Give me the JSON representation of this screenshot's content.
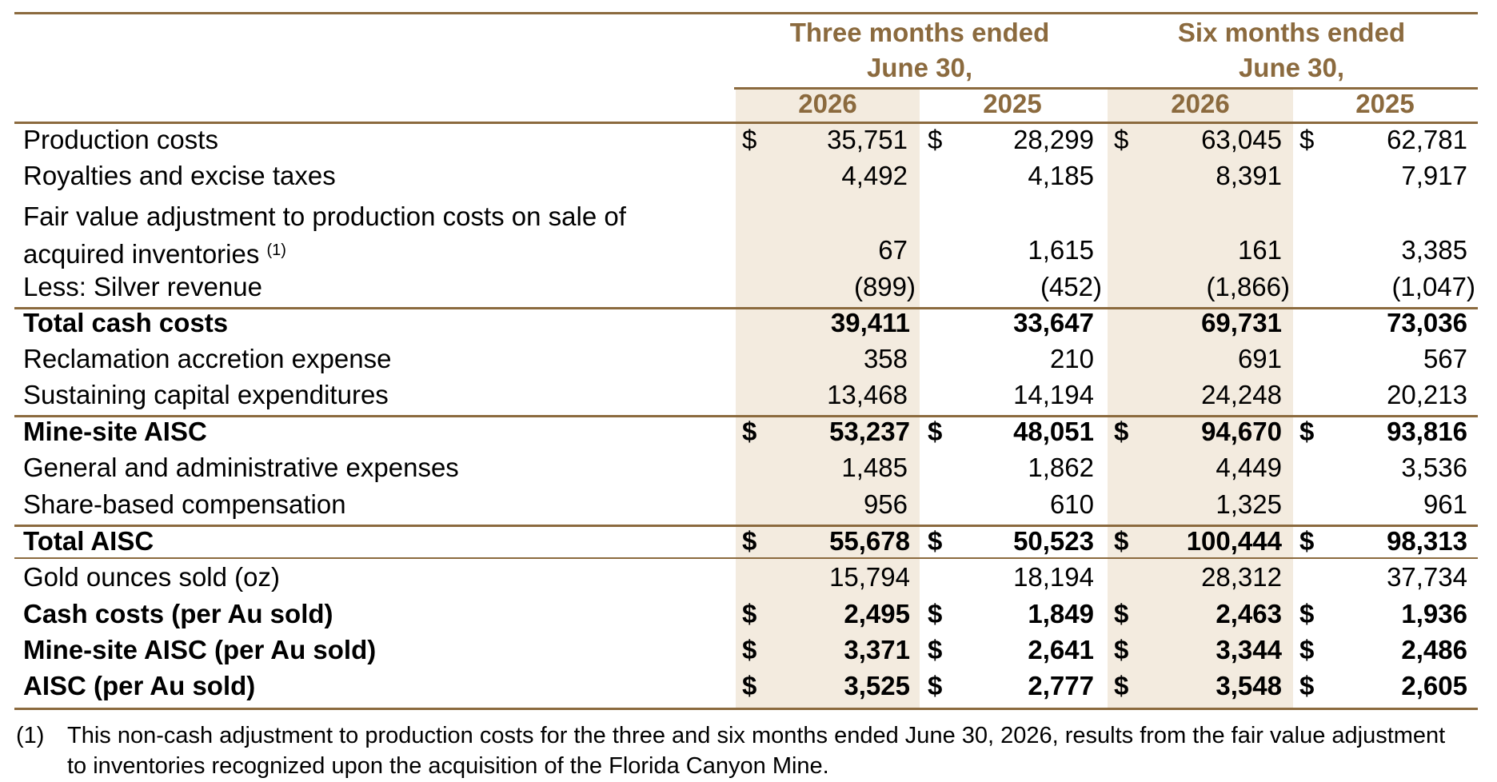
{
  "header": {
    "three_months": [
      "Three months ended",
      "June 30,"
    ],
    "six_months": [
      "Six months ended",
      "June 30,"
    ],
    "years": [
      "2026",
      "2025",
      "2026",
      "2025"
    ]
  },
  "currency_symbol": "$",
  "rows": [
    {
      "label": "Production costs",
      "values": [
        "35,751",
        "28,299",
        "63,045",
        "62,781"
      ],
      "dollar": true,
      "bold": false
    },
    {
      "label": "Royalties and excise taxes",
      "values": [
        "4,492",
        "4,185",
        "8,391",
        "7,917"
      ],
      "dollar": false,
      "bold": false
    },
    {
      "label": "Fair value adjustment to production costs on sale of",
      "label2": "acquired inventories",
      "sup": "(1)",
      "values": [
        "67",
        "1,615",
        "161",
        "3,385"
      ],
      "dollar": false,
      "bold": false
    },
    {
      "label": "Less: Silver revenue",
      "values": [
        "(899)",
        "(452)",
        "(1,866)",
        "(1,047)"
      ],
      "dollar": false,
      "bold": false
    },
    {
      "label": "Total cash costs",
      "values": [
        "39,411",
        "33,647",
        "69,731",
        "73,036"
      ],
      "dollar": false,
      "bold": true
    },
    {
      "label": "Reclamation accretion expense",
      "values": [
        "358",
        "210",
        "691",
        "567"
      ],
      "dollar": false,
      "bold": false
    },
    {
      "label": "Sustaining capital expenditures",
      "values": [
        "13,468",
        "14,194",
        "24,248",
        "20,213"
      ],
      "dollar": false,
      "bold": false
    },
    {
      "label": "Mine-site AISC",
      "values": [
        "53,237",
        "48,051",
        "94,670",
        "93,816"
      ],
      "dollar": true,
      "bold": true
    },
    {
      "label": "General and administrative expenses",
      "values": [
        "1,485",
        "1,862",
        "4,449",
        "3,536"
      ],
      "dollar": false,
      "bold": false
    },
    {
      "label": "Share-based compensation",
      "values": [
        "956",
        "610",
        "1,325",
        "961"
      ],
      "dollar": false,
      "bold": false
    },
    {
      "label": "Total AISC",
      "values": [
        "55,678",
        "50,523",
        "100,444",
        "98,313"
      ],
      "dollar": true,
      "bold": true
    },
    {
      "label": "Gold ounces sold (oz)",
      "values": [
        "15,794",
        "18,194",
        "28,312",
        "37,734"
      ],
      "dollar": false,
      "bold": false
    },
    {
      "label": "Cash costs (per Au sold)",
      "values": [
        "2,495",
        "1,849",
        "2,463",
        "1,936"
      ],
      "dollar": true,
      "bold": true
    },
    {
      "label": "Mine-site AISC (per Au sold)",
      "values": [
        "3,371",
        "2,641",
        "3,344",
        "2,486"
      ],
      "dollar": true,
      "bold": true
    },
    {
      "label": "AISC (per Au sold)",
      "values": [
        "3,525",
        "2,777",
        "3,548",
        "2,605"
      ],
      "dollar": true,
      "bold": true
    }
  ],
  "footnote": {
    "marker": "(1)",
    "lines": [
      "This non-cash adjustment to production costs for the three and six months ended June 30, 2026, results from the fair value adjustment",
      "to inventories recognized upon the acquisition of the Florida Canyon Mine."
    ]
  },
  "colors": {
    "accent": "#8b6a3e",
    "shade": "#f3ebdf"
  }
}
